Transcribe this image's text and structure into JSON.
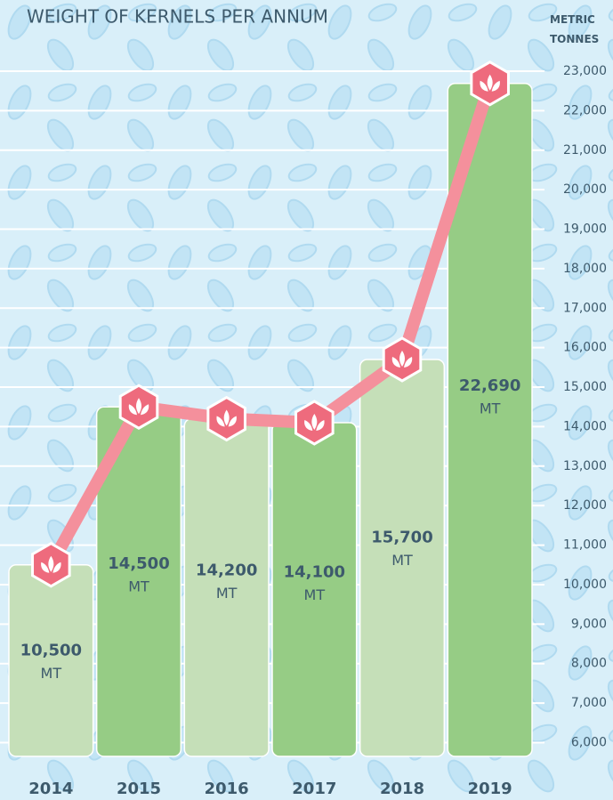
{
  "chart_data": {
    "type": "bar",
    "title": "WEIGHT OF KERNELS PER ANNUM",
    "y_label": "METRIC TONNES",
    "categories": [
      "2014",
      "2015",
      "2016",
      "2017",
      "2018",
      "2019"
    ],
    "values": [
      10500,
      14500,
      14200,
      14100,
      15700,
      22690
    ],
    "value_labels": [
      "10,500",
      "14,500",
      "14,200",
      "14,100",
      "15,700",
      "22,690"
    ],
    "unit": "MT",
    "colors": [
      "#c5dfb8",
      "#96cc85",
      "#c5dfb8",
      "#96cc85",
      "#c5dfb8",
      "#96cc85"
    ],
    "line_color": "#f4909c",
    "marker_color": "#ee6b7d",
    "ylim": [
      5650,
      23000
    ],
    "yticks": [
      {
        "value": 6000,
        "label": "6,000"
      },
      {
        "value": 7000,
        "label": "7,000"
      },
      {
        "value": 8000,
        "label": "8,000"
      },
      {
        "value": 9000,
        "label": "9,000"
      },
      {
        "value": 10000,
        "label": "10,000"
      },
      {
        "value": 11000,
        "label": "11,000"
      },
      {
        "value": 12000,
        "label": "12,000"
      },
      {
        "value": 13000,
        "label": "13,000"
      },
      {
        "value": 14000,
        "label": "14,000"
      },
      {
        "value": 15000,
        "label": "15,000"
      },
      {
        "value": 16000,
        "label": "16,000"
      },
      {
        "value": 17000,
        "label": "17,000"
      },
      {
        "value": 18000,
        "label": "18,000"
      },
      {
        "value": 19000,
        "label": "19,000"
      },
      {
        "value": 20000,
        "label": "20,000"
      },
      {
        "value": 21000,
        "label": "21,000"
      },
      {
        "value": 22000,
        "label": "22,000"
      },
      {
        "value": 23000,
        "label": "23,000"
      }
    ],
    "grid": true
  }
}
